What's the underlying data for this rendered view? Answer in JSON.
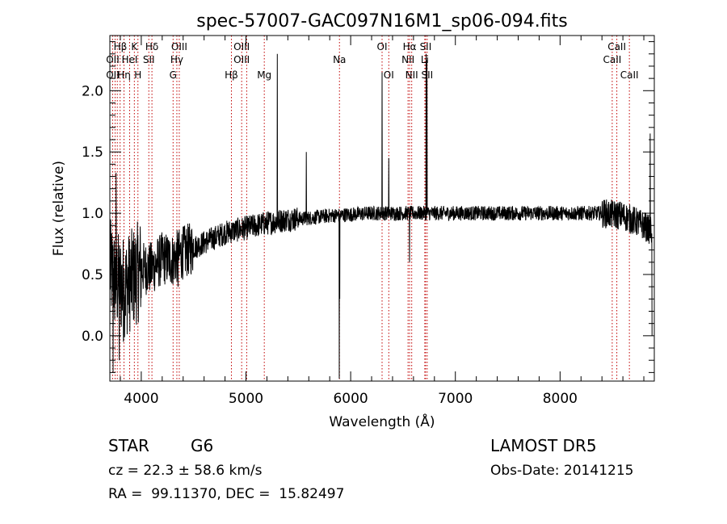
{
  "chart_data": {
    "type": "line",
    "title": "spec-57007-GAC097N16M1_sp06-094.fits",
    "xlabel": "Wavelength (Å)",
    "ylabel": "Flux (relative)",
    "xlim": [
      3700,
      8900
    ],
    "ylim": [
      -0.37,
      2.45
    ],
    "x_ticks": [
      4000,
      5000,
      6000,
      7000,
      8000
    ],
    "x_tick_labels": [
      "4000",
      "5000",
      "6000",
      "7000",
      "8000"
    ],
    "y_ticks": [
      0.0,
      0.5,
      1.0,
      1.5,
      2.0
    ],
    "y_tick_labels": [
      "0.0",
      "0.5",
      "1.0",
      "1.5",
      "2.0"
    ],
    "grid": false,
    "series": [
      {
        "color": "#000000",
        "anchors": [
          [
            3700,
            0.55
          ],
          [
            3750,
            0.45
          ],
          [
            3800,
            0.42
          ],
          [
            3850,
            0.4
          ],
          [
            3900,
            0.45
          ],
          [
            3950,
            0.5
          ],
          [
            4000,
            0.55
          ],
          [
            4100,
            0.55
          ],
          [
            4200,
            0.63
          ],
          [
            4300,
            0.62
          ],
          [
            4400,
            0.68
          ],
          [
            4500,
            0.72
          ],
          [
            4600,
            0.76
          ],
          [
            4700,
            0.8
          ],
          [
            4800,
            0.84
          ],
          [
            4900,
            0.86
          ],
          [
            5000,
            0.88
          ],
          [
            5200,
            0.92
          ],
          [
            5400,
            0.95
          ],
          [
            5600,
            0.96
          ],
          [
            5800,
            0.98
          ],
          [
            6000,
            0.99
          ],
          [
            6200,
            1.0
          ],
          [
            6400,
            1.0
          ],
          [
            6600,
            1.0
          ],
          [
            6800,
            1.0
          ],
          [
            7000,
            1.0
          ],
          [
            7200,
            1.0
          ],
          [
            7400,
            1.0
          ],
          [
            7600,
            1.0
          ],
          [
            7800,
            1.0
          ],
          [
            8000,
            1.0
          ],
          [
            8200,
            1.0
          ],
          [
            8400,
            1.0
          ],
          [
            8600,
            0.98
          ],
          [
            8800,
            0.9
          ],
          [
            8880,
            0.85
          ]
        ],
        "features": [
          [
            3730,
            -0.3
          ],
          [
            3760,
            1.33
          ],
          [
            3790,
            -0.2
          ],
          [
            3830,
            -0.05
          ],
          [
            4350,
            0.4
          ],
          [
            5300,
            2.3
          ],
          [
            5577,
            1.5
          ],
          [
            5890,
            -0.35
          ],
          [
            5895,
            0.3
          ],
          [
            6300,
            2.15
          ],
          [
            6364,
            1.45
          ],
          [
            6563,
            0.6
          ],
          [
            6720,
            2.3
          ],
          [
            6730,
            2.25
          ],
          [
            8860,
            1.65
          ],
          [
            8880,
            0.0
          ]
        ]
      }
    ],
    "line_ids": [
      {
        "label": "Hβ",
        "x": 3800,
        "row": 1
      },
      {
        "label": "K",
        "x": 3934,
        "row": 1
      },
      {
        "label": "Hδ",
        "x": 4102,
        "row": 1
      },
      {
        "label": "OIII",
        "x": 4363,
        "row": 1
      },
      {
        "label": "OIII",
        "x": 4959,
        "row": 1
      },
      {
        "label": "OI",
        "x": 6300,
        "row": 1
      },
      {
        "label": "Hα",
        "x": 6563,
        "row": 1
      },
      {
        "label": "SII",
        "x": 6716,
        "row": 1
      },
      {
        "label": "CaII",
        "x": 8542,
        "row": 1
      },
      {
        "label": "OII",
        "x": 3727,
        "row": 2
      },
      {
        "label": "HeI",
        "x": 3889,
        "row": 2
      },
      {
        "label": "SII",
        "x": 4072,
        "row": 2
      },
      {
        "label": "Hγ",
        "x": 4340,
        "row": 2
      },
      {
        "label": "OIII",
        "x": 4959,
        "row": 2
      },
      {
        "label": "Na",
        "x": 5893,
        "row": 2
      },
      {
        "label": "NII",
        "x": 6548,
        "row": 2
      },
      {
        "label": "Li",
        "x": 6708,
        "row": 2
      },
      {
        "label": "CaII",
        "x": 8498,
        "row": 2
      },
      {
        "label": "OII",
        "x": 3727,
        "row": 3
      },
      {
        "label": "Hη",
        "x": 3835,
        "row": 3
      },
      {
        "label": "H",
        "x": 3968,
        "row": 3
      },
      {
        "label": "G",
        "x": 4304,
        "row": 3
      },
      {
        "label": "Hβ",
        "x": 4861,
        "row": 3
      },
      {
        "label": "Mg",
        "x": 5175,
        "row": 3
      },
      {
        "label": "OI",
        "x": 6364,
        "row": 3
      },
      {
        "label": "NII",
        "x": 6583,
        "row": 3
      },
      {
        "label": "SII",
        "x": 6731,
        "row": 3
      },
      {
        "label": "CaII",
        "x": 8662,
        "row": 3
      }
    ],
    "marker_x": [
      3727,
      3750,
      3771,
      3798,
      3835,
      3889,
      3934,
      3968,
      4072,
      4102,
      4304,
      4340,
      4363,
      4861,
      4959,
      5007,
      5175,
      5893,
      6300,
      6364,
      6548,
      6563,
      6583,
      6708,
      6716,
      6731,
      8498,
      8542,
      8662
    ],
    "marker_color": "#c00000"
  },
  "info": {
    "class": "STAR",
    "subclass": "G6",
    "cz": "cz = 22.3 ± 58.6 km/s",
    "radec": "RA =  99.11370, DEC =  15.82497",
    "survey": "LAMOST DR5",
    "obsdate": "Obs-Date: 20141215"
  }
}
